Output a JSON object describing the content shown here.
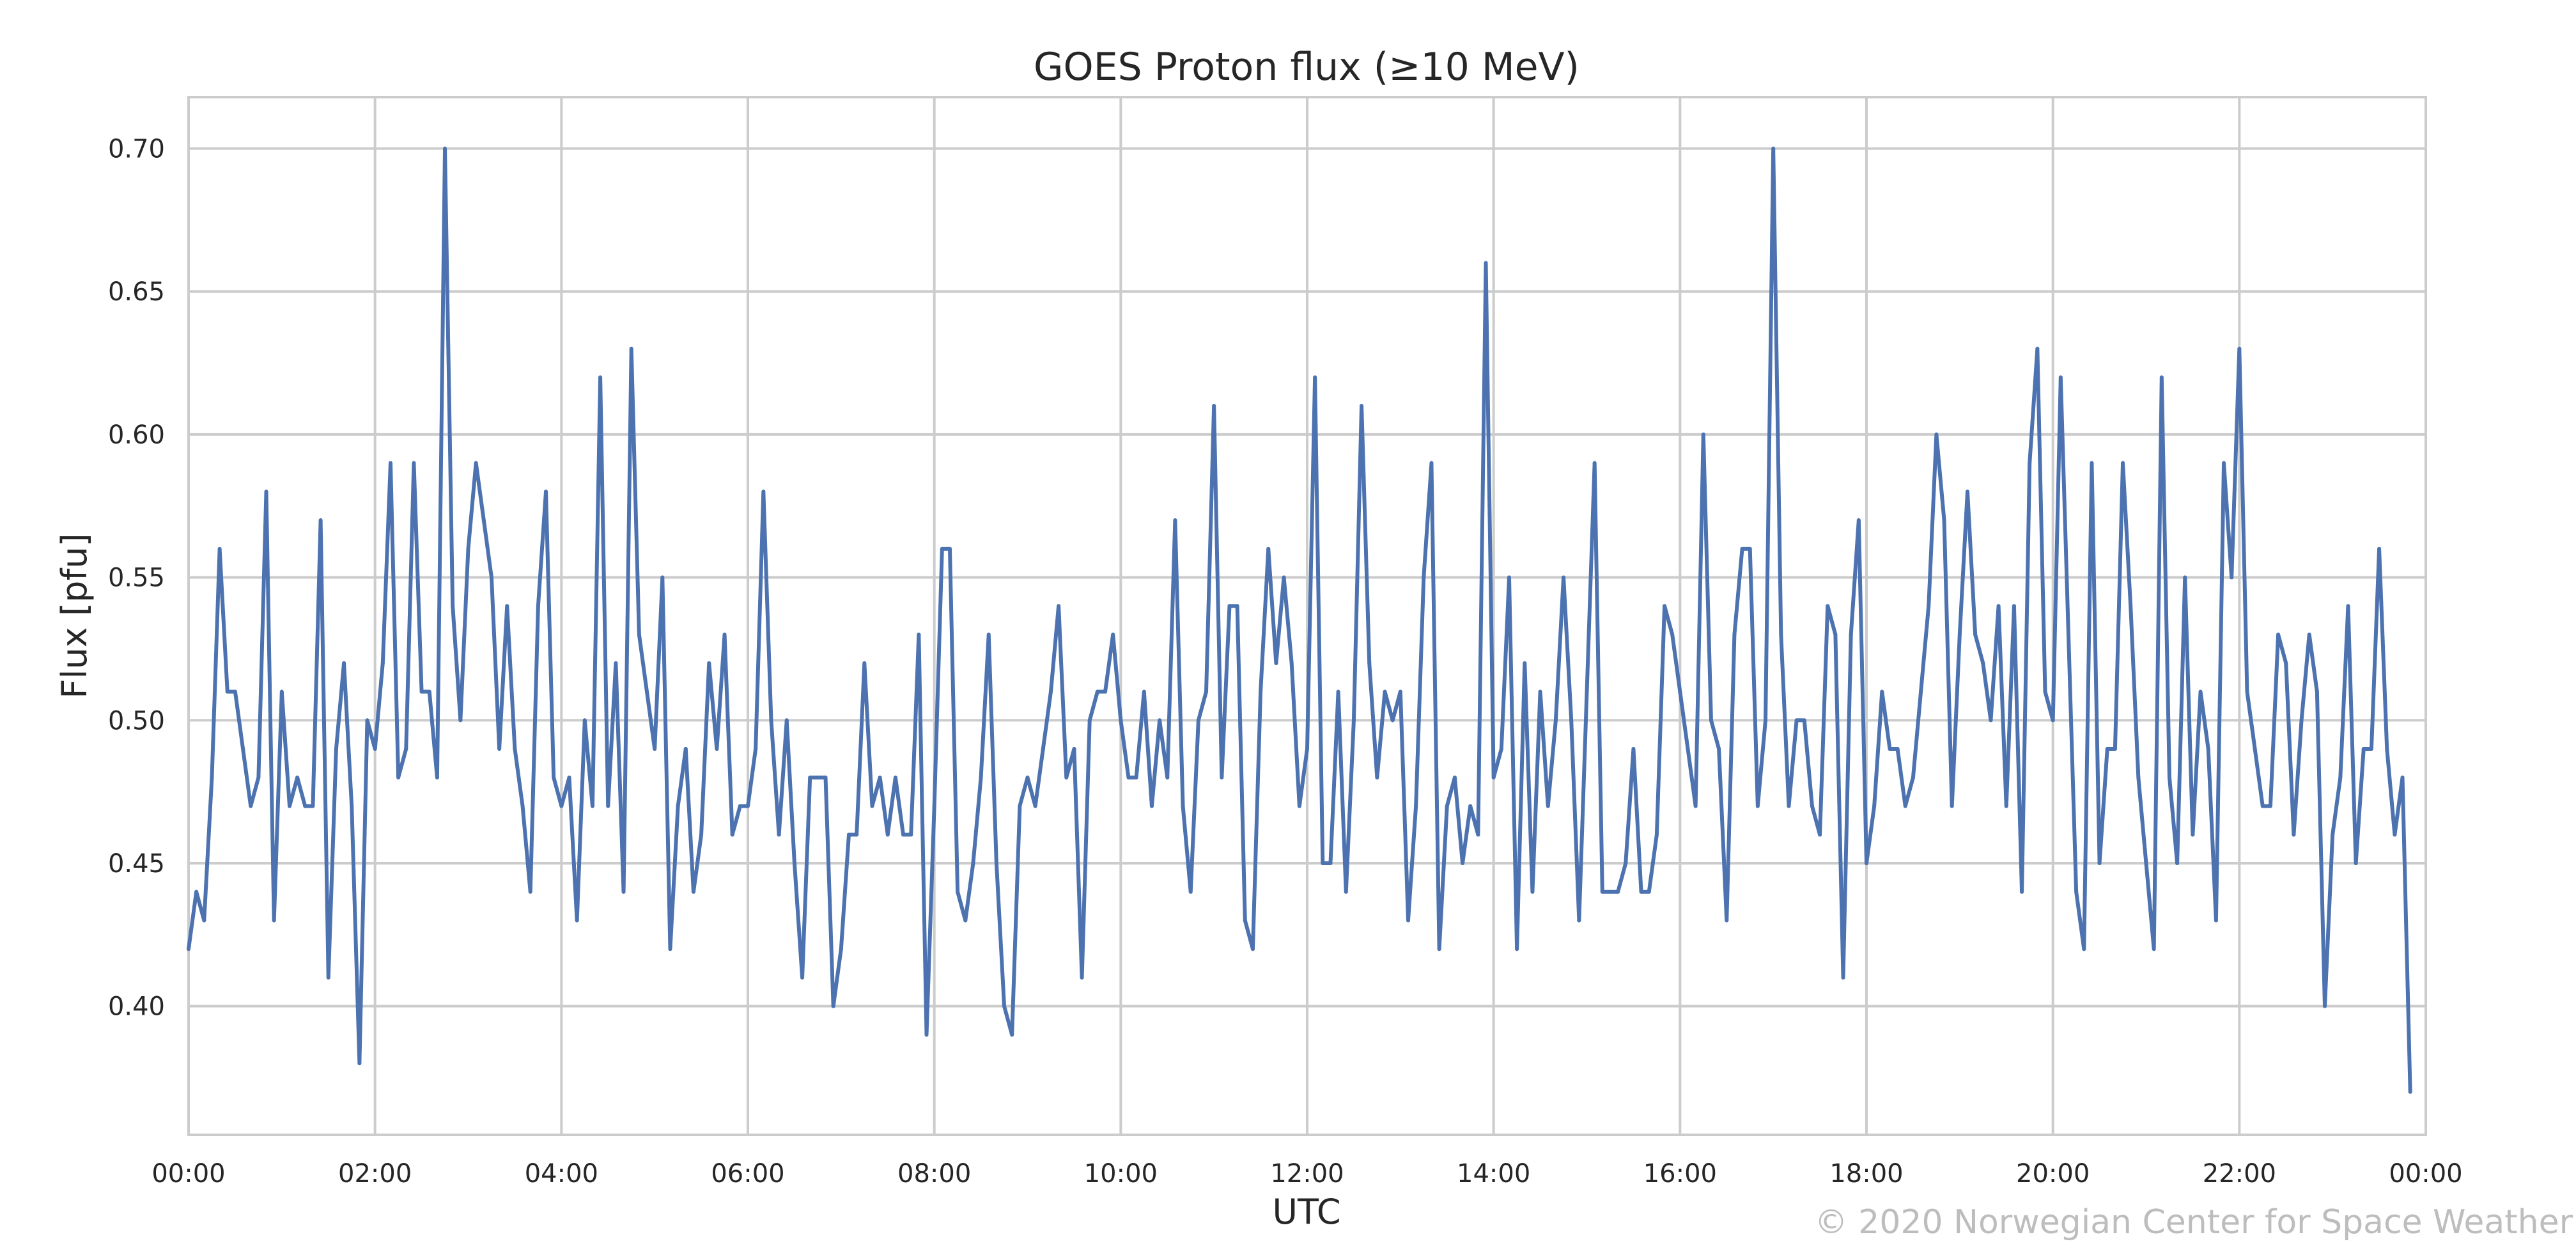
{
  "chart_data": {
    "type": "line",
    "title": "GOES Proton flux (≥10 MeV)",
    "xlabel": "UTC",
    "ylabel": "Flux [pfu]",
    "xlim_hours": [
      0,
      24
    ],
    "ylim": [
      0.355,
      0.718
    ],
    "x_ticks": [
      "00:00",
      "02:00",
      "04:00",
      "06:00",
      "08:00",
      "10:00",
      "12:00",
      "14:00",
      "16:00",
      "18:00",
      "20:00",
      "22:00",
      "00:00"
    ],
    "y_ticks": [
      "0.40",
      "0.45",
      "0.50",
      "0.55",
      "0.60",
      "0.65",
      "0.70"
    ],
    "grid": true,
    "line_color": "#4c72b0",
    "series": [
      {
        "x_interval_minutes": 5,
        "values": [
          0.42,
          0.44,
          0.43,
          0.48,
          0.56,
          0.51,
          0.51,
          0.49,
          0.47,
          0.48,
          0.58,
          0.43,
          0.51,
          0.47,
          0.48,
          0.47,
          0.47,
          0.57,
          0.41,
          0.49,
          0.52,
          0.47,
          0.38,
          0.5,
          0.49,
          0.52,
          0.59,
          0.48,
          0.49,
          0.59,
          0.51,
          0.51,
          0.48,
          0.7,
          0.54,
          0.5,
          0.56,
          0.59,
          0.57,
          0.55,
          0.49,
          0.54,
          0.49,
          0.47,
          0.44,
          0.54,
          0.58,
          0.48,
          0.47,
          0.48,
          0.43,
          0.5,
          0.47,
          0.62,
          0.47,
          0.52,
          0.44,
          0.63,
          0.53,
          0.51,
          0.49,
          0.55,
          0.42,
          0.47,
          0.49,
          0.44,
          0.46,
          0.52,
          0.49,
          0.53,
          0.46,
          0.47,
          0.47,
          0.49,
          0.58,
          0.5,
          0.46,
          0.5,
          0.45,
          0.41,
          0.48,
          0.48,
          0.48,
          0.4,
          0.42,
          0.46,
          0.46,
          0.52,
          0.47,
          0.48,
          0.46,
          0.48,
          0.46,
          0.46,
          0.53,
          0.39,
          0.47,
          0.56,
          0.56,
          0.44,
          0.43,
          0.45,
          0.48,
          0.53,
          0.45,
          0.4,
          0.39,
          0.47,
          0.48,
          0.47,
          0.49,
          0.51,
          0.54,
          0.48,
          0.49,
          0.41,
          0.5,
          0.51,
          0.51,
          0.53,
          0.5,
          0.48,
          0.48,
          0.51,
          0.47,
          0.5,
          0.48,
          0.57,
          0.47,
          0.44,
          0.5,
          0.51,
          0.61,
          0.48,
          0.54,
          0.54,
          0.43,
          0.42,
          0.51,
          0.56,
          0.52,
          0.55,
          0.52,
          0.47,
          0.49,
          0.62,
          0.45,
          0.45,
          0.51,
          0.44,
          0.5,
          0.61,
          0.52,
          0.48,
          0.51,
          0.5,
          0.51,
          0.43,
          0.47,
          0.55,
          0.59,
          0.42,
          0.47,
          0.48,
          0.45,
          0.47,
          0.46,
          0.66,
          0.48,
          0.49,
          0.55,
          0.42,
          0.52,
          0.44,
          0.51,
          0.47,
          0.5,
          0.55,
          0.5,
          0.43,
          0.51,
          0.59,
          0.44,
          0.44,
          0.44,
          0.45,
          0.49,
          0.44,
          0.44,
          0.46,
          0.54,
          0.53,
          0.51,
          0.49,
          0.47,
          0.6,
          0.5,
          0.49,
          0.43,
          0.53,
          0.56,
          0.56,
          0.47,
          0.5,
          0.7,
          0.53,
          0.47,
          0.5,
          0.5,
          0.47,
          0.46,
          0.54,
          0.53,
          0.41,
          0.53,
          0.57,
          0.45,
          0.47,
          0.51,
          0.49,
          0.49,
          0.47,
          0.48,
          0.51,
          0.54,
          0.6,
          0.57,
          0.47,
          0.53,
          0.58,
          0.53,
          0.52,
          0.5,
          0.54,
          0.47,
          0.54,
          0.44,
          0.59,
          0.63,
          0.51,
          0.5,
          0.62,
          0.53,
          0.44,
          0.42,
          0.59,
          0.45,
          0.49,
          0.49,
          0.59,
          0.54,
          0.48,
          0.45,
          0.42,
          0.62,
          0.48,
          0.45,
          0.55,
          0.46,
          0.51,
          0.49,
          0.43,
          0.59,
          0.55,
          0.63,
          0.51,
          0.49,
          0.47,
          0.47,
          0.53,
          0.52,
          0.46,
          0.5,
          0.53,
          0.51,
          0.4,
          0.46,
          0.48,
          0.54,
          0.45,
          0.49,
          0.49,
          0.56,
          0.49,
          0.46,
          0.48,
          0.37
        ]
      }
    ]
  },
  "credit": "© 2020 Norwegian Center for Space Weather"
}
